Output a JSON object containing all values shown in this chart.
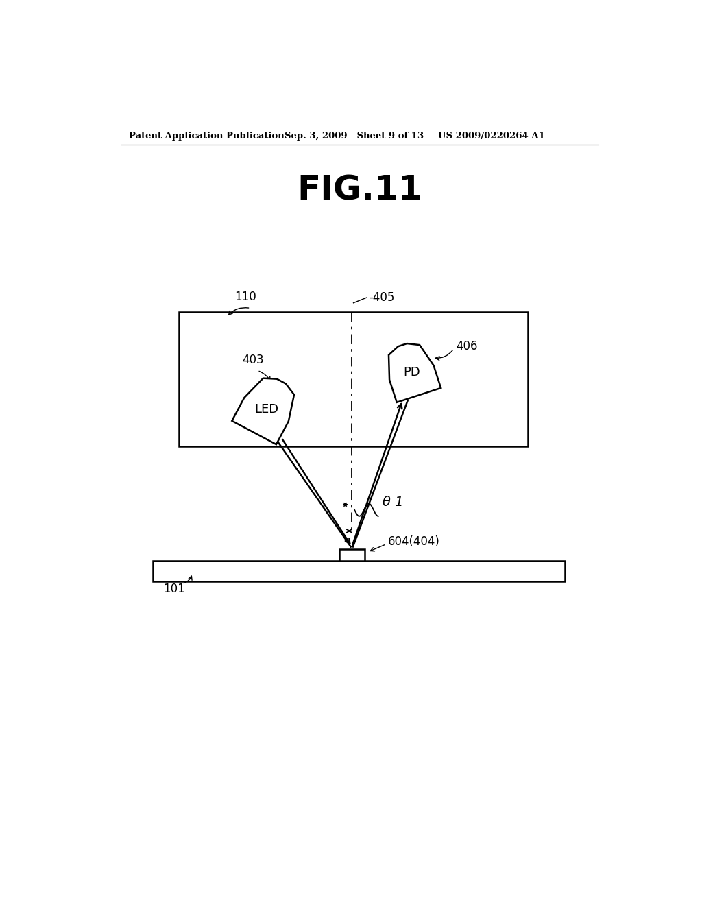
{
  "title": "FIG.11",
  "header_left": "Patent Application Publication",
  "header_mid": "Sep. 3, 2009   Sheet 9 of 13",
  "header_right": "US 2009/0220264 A1",
  "bg_color": "#ffffff",
  "line_color": "#000000",
  "label_110": "110",
  "label_405": "-405",
  "label_403": "403",
  "label_406": "406",
  "label_LED": "LED",
  "label_PD": "PD",
  "label_theta": "θ 1",
  "label_604": "604(404)",
  "label_101": "101"
}
